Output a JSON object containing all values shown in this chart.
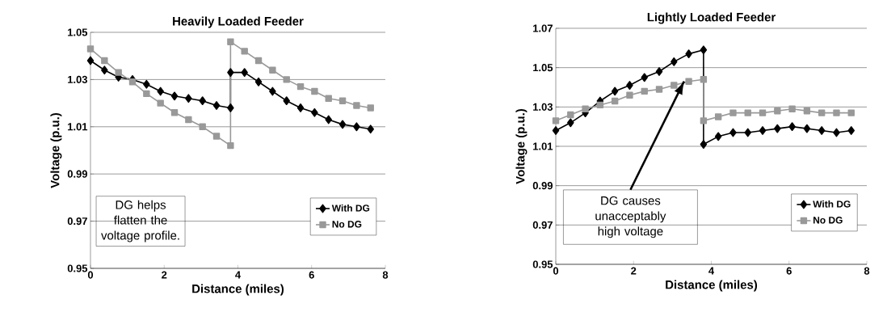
{
  "chart_data": [
    {
      "type": "line",
      "title": "Heavily Loaded Feeder",
      "xlabel": "Distance (miles)",
      "ylabel": "Voltage (p.u.)",
      "x": [
        0,
        0.38,
        0.76,
        1.14,
        1.52,
        1.9,
        2.28,
        2.66,
        3.04,
        3.42,
        3.8,
        3.8,
        4.18,
        4.56,
        4.94,
        5.32,
        5.7,
        6.08,
        6.46,
        6.84,
        7.22,
        7.6
      ],
      "series": [
        {
          "name": "With DG",
          "color": "#000000",
          "marker": "diamond",
          "values": [
            1.038,
            1.034,
            1.031,
            1.03,
            1.028,
            1.025,
            1.023,
            1.022,
            1.021,
            1.019,
            1.018,
            1.033,
            1.033,
            1.029,
            1.025,
            1.021,
            1.018,
            1.016,
            1.013,
            1.011,
            1.01,
            1.009
          ]
        },
        {
          "name": "No DG",
          "color": "#999999",
          "marker": "square",
          "values": [
            1.043,
            1.038,
            1.033,
            1.029,
            1.024,
            1.02,
            1.016,
            1.013,
            1.01,
            1.006,
            1.002,
            1.046,
            1.042,
            1.038,
            1.034,
            1.03,
            1.027,
            1.025,
            1.022,
            1.021,
            1.019,
            1.018
          ]
        }
      ],
      "xlim": [
        0,
        8
      ],
      "xticks": [
        0,
        2,
        4,
        6,
        8
      ],
      "ylim": [
        0.95,
        1.05
      ],
      "yticks": [
        0.95,
        0.97,
        0.99,
        1.01,
        1.03,
        1.05
      ],
      "grid": "y",
      "legend": "bottom right",
      "annotations": [
        "DG helps flatten the voltage profile."
      ]
    },
    {
      "type": "line",
      "title": "Lightly Loaded Feeder",
      "xlabel": "Distance (miles)",
      "ylabel": "Voltage (p.u.)",
      "x": [
        0,
        0.38,
        0.76,
        1.14,
        1.52,
        1.9,
        2.28,
        2.66,
        3.04,
        3.42,
        3.8,
        3.8,
        4.18,
        4.56,
        4.94,
        5.32,
        5.7,
        6.08,
        6.46,
        6.84,
        7.22,
        7.6
      ],
      "series": [
        {
          "name": "With DG",
          "color": "#000000",
          "marker": "diamond",
          "values": [
            1.018,
            1.022,
            1.027,
            1.033,
            1.038,
            1.041,
            1.045,
            1.048,
            1.053,
            1.057,
            1.059,
            1.011,
            1.015,
            1.017,
            1.017,
            1.018,
            1.019,
            1.02,
            1.019,
            1.018,
            1.017,
            1.018
          ]
        },
        {
          "name": "No DG",
          "color": "#999999",
          "marker": "square",
          "values": [
            1.023,
            1.026,
            1.029,
            1.031,
            1.033,
            1.036,
            1.038,
            1.039,
            1.041,
            1.043,
            1.044,
            1.023,
            1.025,
            1.027,
            1.027,
            1.027,
            1.028,
            1.029,
            1.028,
            1.027,
            1.027,
            1.027
          ]
        }
      ],
      "xlim": [
        0,
        8
      ],
      "xticks": [
        0,
        2,
        4,
        6,
        8
      ],
      "ylim": [
        0.95,
        1.07
      ],
      "yticks": [
        0.95,
        0.97,
        0.99,
        1.01,
        1.03,
        1.05,
        1.07
      ],
      "grid": "y",
      "legend": "bottom right",
      "annotations": [
        {
          "text": "DG causes unacceptably high voltage",
          "x": 3.3,
          "y": 1.043
        }
      ]
    }
  ]
}
